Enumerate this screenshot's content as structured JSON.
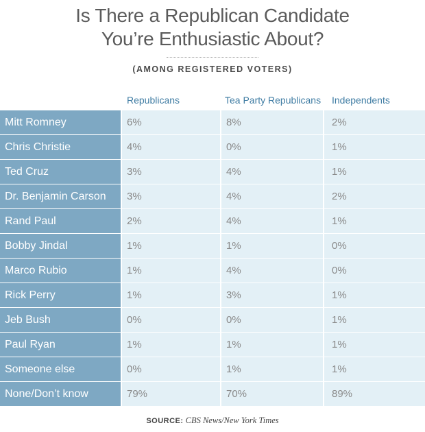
{
  "chart_data": {
    "type": "table",
    "title_line1": "Is There a Republican Candidate",
    "title_line2": "You’re Enthusiastic About?",
    "subtitle": "(AMONG REGISTERED VOTERS)",
    "columns": [
      "Republicans",
      "Tea Party Republicans",
      "Independents"
    ],
    "rows": [
      {
        "name": "Mitt Romney",
        "values": [
          "6%",
          "8%",
          "2%"
        ]
      },
      {
        "name": "Chris Christie",
        "values": [
          "4%",
          "0%",
          "1%"
        ]
      },
      {
        "name": "Ted Cruz",
        "values": [
          "3%",
          "4%",
          "1%"
        ]
      },
      {
        "name": "Dr. Benjamin Carson",
        "values": [
          "3%",
          "4%",
          "2%"
        ]
      },
      {
        "name": "Rand Paul",
        "values": [
          "2%",
          "4%",
          "1%"
        ]
      },
      {
        "name": "Bobby Jindal",
        "values": [
          "1%",
          "1%",
          "0%"
        ]
      },
      {
        "name": "Marco Rubio",
        "values": [
          "1%",
          "4%",
          "0%"
        ]
      },
      {
        "name": "Rick Perry",
        "values": [
          "1%",
          "3%",
          "1%"
        ]
      },
      {
        "name": "Jeb Bush",
        "values": [
          "0%",
          "0%",
          "1%"
        ]
      },
      {
        "name": "Paul Ryan",
        "values": [
          "1%",
          "1%",
          "1%"
        ]
      },
      {
        "name": "Someone else",
        "values": [
          "0%",
          "1%",
          "1%"
        ]
      },
      {
        "name": "None/Don’t know",
        "values": [
          "79%",
          "70%",
          "89%"
        ]
      }
    ]
  },
  "source": {
    "label": "SOURCE:",
    "text": "CBS News/New York Times"
  },
  "colors": {
    "name_column": "#7ea8c3",
    "value_cells": "#e3f0f6",
    "header_text": "#3f7ca3"
  }
}
